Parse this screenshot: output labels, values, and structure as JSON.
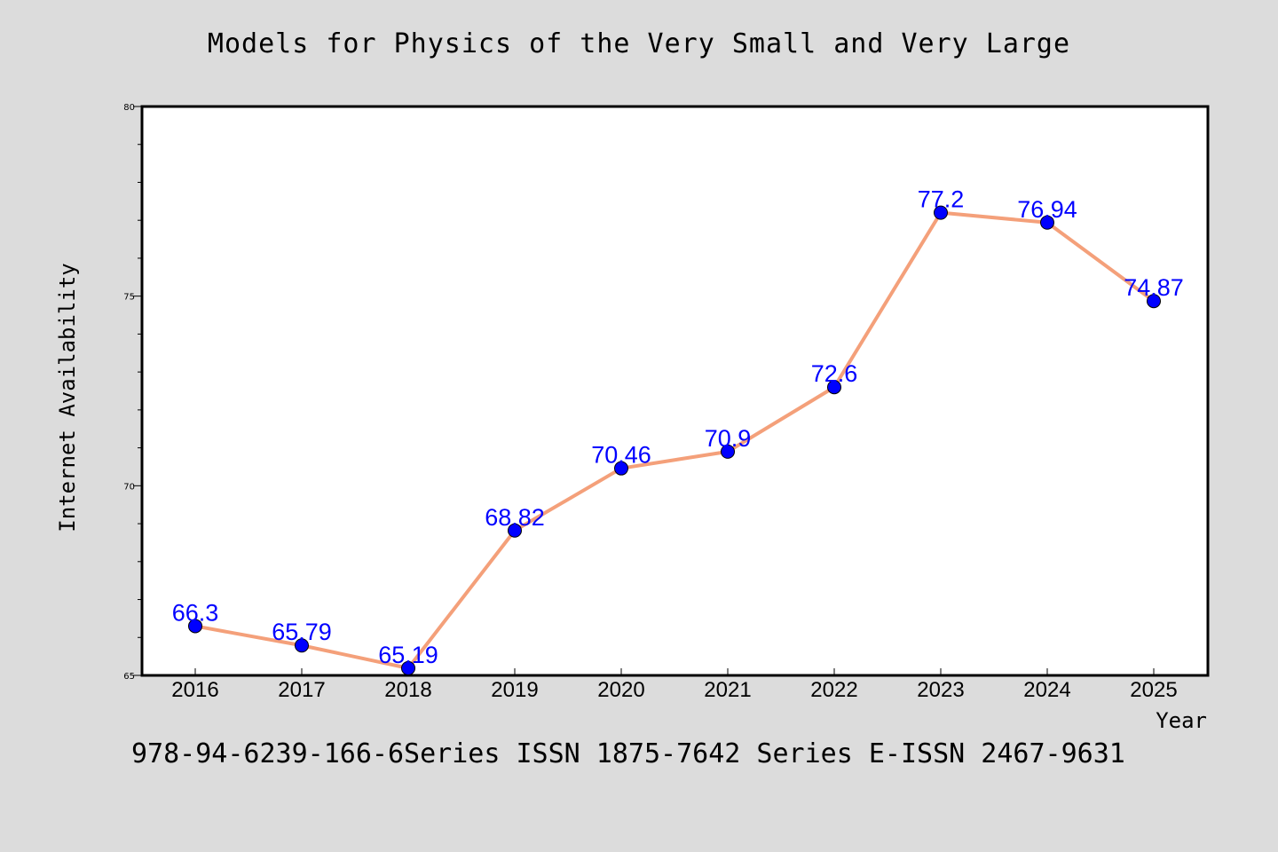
{
  "chart_data": {
    "type": "line",
    "title": "Models for Physics of the Very Small and Very Large",
    "xlabel": "Year",
    "ylabel": "Internet Availability",
    "footer": "978-94-6239-166-6Series ISSN 1875-7642 Series E-ISSN 2467-9631",
    "categories": [
      "2016",
      "2017",
      "2018",
      "2019",
      "2020",
      "2021",
      "2022",
      "2023",
      "2024",
      "2025"
    ],
    "series": [
      {
        "values": [
          66.3,
          65.79,
          65.19,
          68.82,
          70.46,
          70.9,
          72.6,
          77.2,
          76.94,
          74.87
        ],
        "labels": [
          "66.3",
          "65.79",
          "65.19",
          "68.82",
          "70.46",
          "70.9",
          "72.6",
          "77.2",
          "76.94",
          "74.87"
        ]
      }
    ],
    "ylim": [
      65,
      80
    ],
    "yticks": [
      "65",
      "70",
      "75",
      "80"
    ],
    "grid": false,
    "colors": {
      "line": "#f4a07a",
      "marker": "#0000ff",
      "label": "#0000ff",
      "background": "#dcdcdc",
      "plot_background": "#ffffff"
    }
  }
}
